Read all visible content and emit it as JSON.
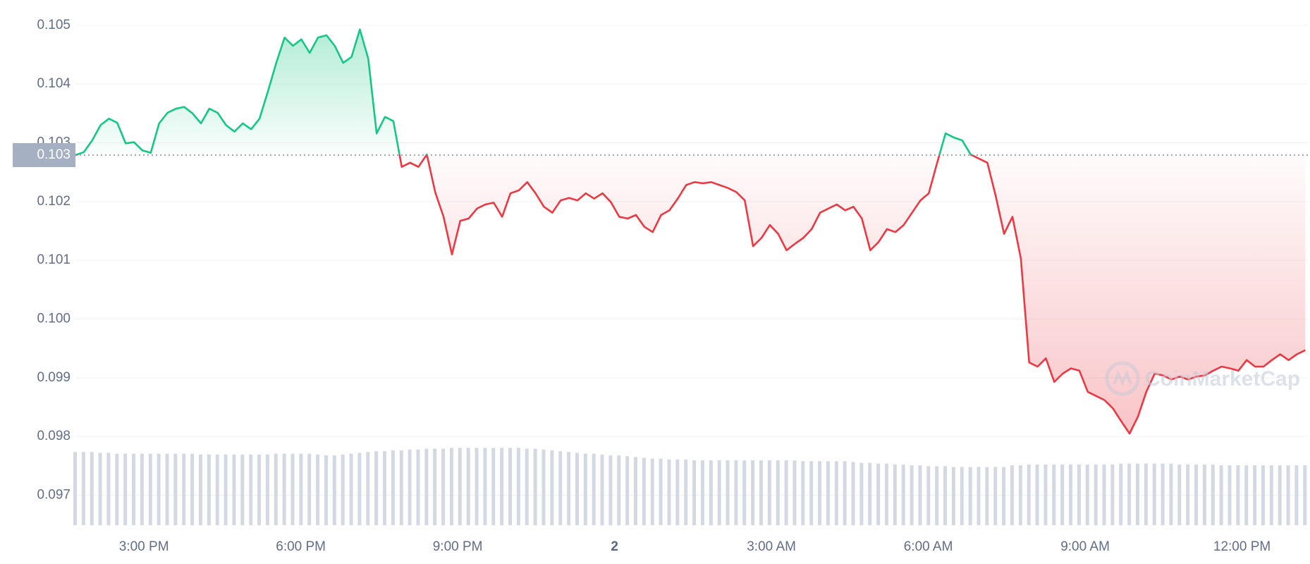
{
  "chart_data": {
    "type": "line",
    "x": [
      13.69,
      13.85,
      14.01,
      14.17,
      14.33,
      14.49,
      14.65,
      14.81,
      14.97,
      15.13,
      15.29,
      15.45,
      15.61,
      15.77,
      15.93,
      16.09,
      16.25,
      16.41,
      16.57,
      16.73,
      16.89,
      17.05,
      17.21,
      17.37,
      17.53,
      17.69,
      17.85,
      18.01,
      18.17,
      18.33,
      18.49,
      18.65,
      18.81,
      18.97,
      19.13,
      19.29,
      19.45,
      19.61,
      19.77,
      19.93,
      20.09,
      20.25,
      20.41,
      20.57,
      20.73,
      20.89,
      21.05,
      21.21,
      21.37,
      21.53,
      21.69,
      21.85,
      22.01,
      22.17,
      22.33,
      22.49,
      22.65,
      22.81,
      22.97,
      23.13,
      23.29,
      23.45,
      23.61,
      23.77,
      23.93,
      24.09,
      24.25,
      24.41,
      24.57,
      24.73,
      24.89,
      25.05,
      25.21,
      25.37,
      25.53,
      25.69,
      25.85,
      26.01,
      26.17,
      26.33,
      26.49,
      26.65,
      26.81,
      26.97,
      27.13,
      27.29,
      27.45,
      27.61,
      27.77,
      27.93,
      28.09,
      28.25,
      28.41,
      28.57,
      28.73,
      28.89,
      29.05,
      29.21,
      29.37,
      29.53,
      29.69,
      29.85,
      30.01,
      30.17,
      30.33,
      30.49,
      30.65,
      30.81,
      30.97,
      31.13,
      31.29,
      31.45,
      31.61,
      31.77,
      31.93,
      32.09,
      32.25,
      32.41,
      32.57,
      32.73,
      32.89,
      33.05,
      33.21,
      33.37,
      33.53,
      33.69,
      33.85,
      34.01,
      34.17,
      34.33,
      34.49,
      34.65,
      34.81,
      34.97,
      35.13,
      35.29,
      35.45,
      35.61,
      35.77,
      35.93,
      36.09,
      36.25,
      36.41,
      36.57,
      36.73,
      36.89,
      37.05,
      37.21
    ],
    "series": [
      {
        "color": "#16c784",
        "color_below": "#ea3943",
        "values": [
          0.10279,
          0.10284,
          0.10304,
          0.1033,
          0.10341,
          0.10334,
          0.10299,
          0.10301,
          0.10287,
          0.10283,
          0.10333,
          0.10351,
          0.10358,
          0.10361,
          0.1035,
          0.10333,
          0.10358,
          0.10351,
          0.1033,
          0.10319,
          0.10333,
          0.10323,
          0.10341,
          0.10387,
          0.10436,
          0.10479,
          0.10465,
          0.10476,
          0.10453,
          0.10479,
          0.10483,
          0.10465,
          0.10436,
          0.10446,
          0.10493,
          0.10443,
          0.10316,
          0.10344,
          0.10337,
          0.10259,
          0.10266,
          0.10259,
          0.1028,
          0.10216,
          0.10174,
          0.1011,
          0.10167,
          0.10171,
          0.10188,
          0.10195,
          0.10198,
          0.10174,
          0.10214,
          0.10219,
          0.10233,
          0.10214,
          0.10191,
          0.10181,
          0.10202,
          0.10206,
          0.10202,
          0.10214,
          0.10205,
          0.10214,
          0.10199,
          0.10174,
          0.10171,
          0.10177,
          0.10157,
          0.10148,
          0.10177,
          0.10185,
          0.10205,
          0.10228,
          0.10233,
          0.10231,
          0.10233,
          0.10228,
          0.10223,
          0.10216,
          0.10202,
          0.10124,
          0.10138,
          0.1016,
          0.10145,
          0.10117,
          0.10128,
          0.10138,
          0.10153,
          0.10181,
          0.10188,
          0.10195,
          0.10185,
          0.10191,
          0.10171,
          0.10117,
          0.10131,
          0.10153,
          0.10148,
          0.1016,
          0.10181,
          0.10202,
          0.10214,
          0.10266,
          0.10316,
          0.10309,
          0.10304,
          0.1028,
          0.10273,
          0.10266,
          0.10209,
          0.10145,
          0.10174,
          0.10103,
          0.09926,
          0.09919,
          0.09933,
          0.09893,
          0.09907,
          0.09916,
          0.09912,
          0.09876,
          0.09869,
          0.09862,
          0.09848,
          0.09826,
          0.09805,
          0.09834,
          0.09876,
          0.09907,
          0.09904,
          0.09897,
          0.09902,
          0.09897,
          0.09902,
          0.09904,
          0.09912,
          0.09919,
          0.09916,
          0.09912,
          0.0993,
          0.09919,
          0.09919,
          0.0993,
          0.0994,
          0.0993,
          0.0994,
          0.09947
        ]
      }
    ],
    "volume": {
      "color": "#d3d9e2",
      "axis": "y2",
      "values": [
        88,
        88,
        88,
        87,
        87,
        86,
        86,
        86,
        86,
        86,
        86,
        86,
        86,
        86,
        86,
        85,
        85,
        85,
        85,
        85,
        85,
        85,
        85,
        85,
        86,
        86,
        86,
        86,
        86,
        85,
        84,
        84,
        85,
        86,
        87,
        88,
        89,
        89,
        90,
        90,
        91,
        91,
        92,
        92,
        92,
        93,
        93,
        93,
        93,
        93,
        93,
        93,
        93,
        93,
        92,
        92,
        91,
        90,
        89,
        88,
        87,
        86,
        86,
        85,
        84,
        84,
        83,
        82,
        81,
        80,
        80,
        79,
        79,
        79,
        78,
        78,
        78,
        78,
        78,
        78,
        78,
        78,
        78,
        78,
        78,
        78,
        78,
        77,
        77,
        77,
        77,
        77,
        77,
        76,
        75,
        75,
        74,
        74,
        73,
        73,
        72,
        72,
        71,
        71,
        71,
        70,
        70,
        70,
        70,
        70,
        70,
        70,
        72,
        72,
        73,
        73,
        73,
        73,
        73,
        73,
        73,
        73,
        73,
        73,
        73,
        74,
        74,
        74,
        74,
        74,
        74,
        74,
        73,
        73,
        73,
        73,
        73,
        72,
        72,
        72,
        72,
        72,
        72,
        72,
        72,
        72,
        72,
        72
      ]
    },
    "xlim": [
      13.69,
      37.26
    ],
    "xticks": [
      {
        "value": 15,
        "label": "3:00 PM"
      },
      {
        "value": 18,
        "label": "6:00 PM"
      },
      {
        "value": 21,
        "label": "9:00 PM"
      },
      {
        "value": 24,
        "label": "2"
      },
      {
        "value": 27,
        "label": "3:00 AM"
      },
      {
        "value": 30,
        "label": "6:00 AM"
      },
      {
        "value": 33,
        "label": "9:00 AM"
      },
      {
        "value": 36,
        "label": "12:00 PM"
      }
    ],
    "ylim": [
      0.09649,
      0.10543
    ],
    "yticks": [
      0.097,
      0.098,
      0.099,
      {
        "value": 0.1,
        "label": "0.100"
      },
      0.101,
      0.102,
      0.103,
      0.104,
      0.105
    ],
    "y2lim": [
      0,
      100
    ],
    "grid": true,
    "reference": {
      "value": 0.10279,
      "label": "0.103"
    },
    "watermark": "CoinMarketCap"
  }
}
